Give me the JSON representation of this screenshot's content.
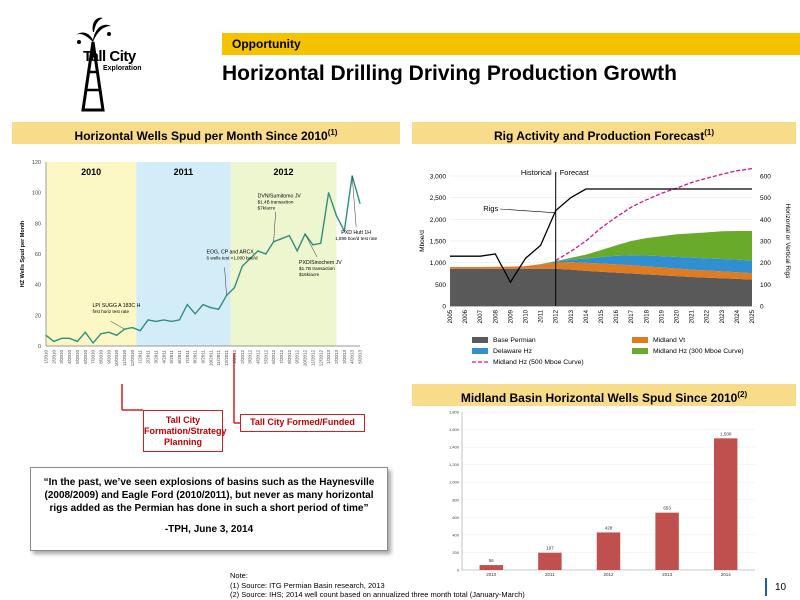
{
  "logo": {
    "line1": "Tall City",
    "line2": "Exploration"
  },
  "section_label": "Opportunity",
  "page_title": "Horizontal Drilling Driving Production Growth",
  "page_number": "10",
  "colors": {
    "accent_yellow": "#f5c200",
    "header_yellow": "#f9dc8a",
    "callout_red": "#d22020",
    "bar_red": "#c0504d"
  },
  "panels": {
    "left": {
      "title": "Horizontal Wells Spud per Month Since 2010",
      "sup": "(1)"
    },
    "top_right": {
      "title": "Rig Activity and Production Forecast",
      "sup": "(1)"
    },
    "bottom_right": {
      "title": "Midland Basin Horizontal Wells Spud Since 2010",
      "sup": "(2)"
    }
  },
  "callouts": {
    "formation": "Tall City Formation/Strategy Planning",
    "formed": "Tall City Formed/Funded"
  },
  "quote": {
    "text": "“In the past, we’ve seen explosions of basins such as the Haynesville (2008/2009) and Eagle Ford (2010/2011), but never as many horizontal rigs added as the Permian has done in such a short period of time”",
    "attribution": "-TPH, June 3, 2014"
  },
  "notes": {
    "heading": "Note:",
    "n1": "(1)     Source: ITG Permian Basin research, 2013",
    "n2": "(2)     Source: IHS; 2014 well count based on annualized three month total (January-March)"
  },
  "chart_data": [
    {
      "type": "line",
      "ylabel": "HZ Wells Spud per Month",
      "ylim": [
        0,
        120
      ],
      "yticks": [
        "0",
        "20",
        "40",
        "60",
        "80",
        "100",
        "120"
      ],
      "bands": [
        {
          "label": "2010",
          "from": 0,
          "to": 12,
          "color": "#fbf8c6"
        },
        {
          "label": "2011",
          "from": 12,
          "to": 24,
          "color": "#d3edf8"
        },
        {
          "label": "2012",
          "from": 24,
          "to": 37,
          "color": "#eef6d0"
        }
      ],
      "xticks": [
        "1/2010",
        "2/2010",
        "3/2010",
        "4/2010",
        "5/2010",
        "6/2010",
        "7/2010",
        "8/2010",
        "9/2010",
        "10/2010",
        "11/2010",
        "12/2010",
        "1/2011",
        "2/2011",
        "3/2011",
        "4/2011",
        "5/2011",
        "6/2011",
        "7/2011",
        "8/2011",
        "9/2011",
        "10/2011",
        "11/2011",
        "12/2011",
        "1/2012",
        "2/2012",
        "3/2012",
        "4/2012",
        "5/2012",
        "6/2012",
        "7/2012",
        "8/2012",
        "9/2012",
        "10/2012",
        "11/2012",
        "12/2012",
        "1/2013",
        "2/2013",
        "3/2013",
        "4/2013",
        "5/2013"
      ],
      "values": [
        7,
        3,
        5,
        5,
        3,
        9,
        2,
        8,
        9,
        7,
        11,
        12,
        10,
        17,
        16,
        17,
        16,
        17,
        27,
        21,
        27,
        25,
        24,
        33,
        38,
        52,
        57,
        62,
        60,
        68,
        70,
        72,
        62,
        73,
        66,
        67,
        100,
        85,
        75,
        111,
        93
      ],
      "annotations": [
        {
          "text": "LPI SUGG A 183C H",
          "sub": "first horiz test rate",
          "at": 10
        },
        {
          "text": "EOG, CP and ARCX",
          "sub": "6 wells test >1,000 boe/d",
          "at": 23
        },
        {
          "text": "DVN/Sumitomo JV",
          "sub": "$1.4B transaction",
          "sub2": "$7k/acre",
          "at": 29
        },
        {
          "text": "PXD/Sinochem JV",
          "sub": "$1.7B transaction",
          "sub2": "$16k/acre",
          "at": 33
        },
        {
          "text": "PXD Hutt 1H",
          "sub": "1,899 boe/d test rate",
          "at": 39
        }
      ]
    },
    {
      "type": "area",
      "xlabels": [
        "2005",
        "2006",
        "2007",
        "2008",
        "2009",
        "2010",
        "2011",
        "2012",
        "2013",
        "2014",
        "2015",
        "2016",
        "2017",
        "2018",
        "2019",
        "2020",
        "2021",
        "2022",
        "2023",
        "2024",
        "2025"
      ],
      "ylabel": "Mboe/d",
      "y2label": "Horizontal or Vertical Rigs",
      "ylim": [
        0,
        3000
      ],
      "y2lim": [
        0,
        600
      ],
      "yticks": [
        "0",
        "500",
        "1,000",
        "1,500",
        "2,000",
        "2,500",
        "3,000"
      ],
      "y2ticks": [
        "0",
        "100",
        "200",
        "300",
        "400",
        "500",
        "600"
      ],
      "text_labels": {
        "historical": "Historical",
        "forecast": "Forecast",
        "rigs": "Rigs"
      },
      "series": [
        {
          "name": "Base Permian",
          "color": "#595959",
          "values": [
            860,
            860,
            860,
            860,
            860,
            860,
            860,
            860,
            840,
            810,
            790,
            770,
            750,
            730,
            710,
            690,
            670,
            655,
            640,
            625,
            610
          ]
        },
        {
          "name": "Midland Vt",
          "color": "#e07b20",
          "values": [
            40,
            40,
            40,
            45,
            50,
            60,
            100,
            140,
            170,
            185,
            190,
            190,
            190,
            185,
            180,
            175,
            170,
            165,
            160,
            155,
            150
          ]
        },
        {
          "name": "Delaware Hz",
          "color": "#2f8fd0",
          "values": [
            0,
            0,
            0,
            0,
            0,
            0,
            5,
            25,
            60,
            100,
            150,
            200,
            230,
            250,
            260,
            270,
            275,
            280,
            285,
            290,
            290
          ]
        },
        {
          "name": "Midland Hz (300 Mboe Curve)",
          "color": "#6aaa2a",
          "values": [
            0,
            0,
            0,
            0,
            0,
            0,
            2,
            10,
            40,
            90,
            160,
            240,
            330,
            400,
            460,
            520,
            560,
            600,
            640,
            660,
            680
          ]
        },
        {
          "name": "Midland Hz (500 Mboe Curve)",
          "color": "#d4148a",
          "style": "dashed",
          "values": [
            null,
            null,
            null,
            null,
            null,
            null,
            null,
            1050,
            1260,
            1500,
            1800,
            2050,
            2280,
            2450,
            2600,
            2720,
            2850,
            2950,
            3040,
            3120,
            3170
          ]
        },
        {
          "name": "Rigs",
          "color": "#000000",
          "axis": "y2",
          "values": [
            230,
            230,
            230,
            240,
            110,
            220,
            280,
            440,
            500,
            540,
            540,
            540,
            540,
            540,
            540,
            540,
            540,
            540,
            540,
            540,
            540
          ]
        }
      ]
    },
    {
      "type": "bar",
      "categories": [
        "2010",
        "2011",
        "2012",
        "2013",
        "2014"
      ],
      "values": [
        56,
        197,
        428,
        653,
        1500
      ],
      "labels": [
        "56",
        "197",
        "428",
        "653",
        "1,500"
      ],
      "ylim": [
        0,
        1800
      ],
      "yticks": [
        "0",
        "200",
        "400",
        "600",
        "800",
        "1,000",
        "1,200",
        "1,400",
        "1,600",
        "1,800"
      ]
    }
  ]
}
